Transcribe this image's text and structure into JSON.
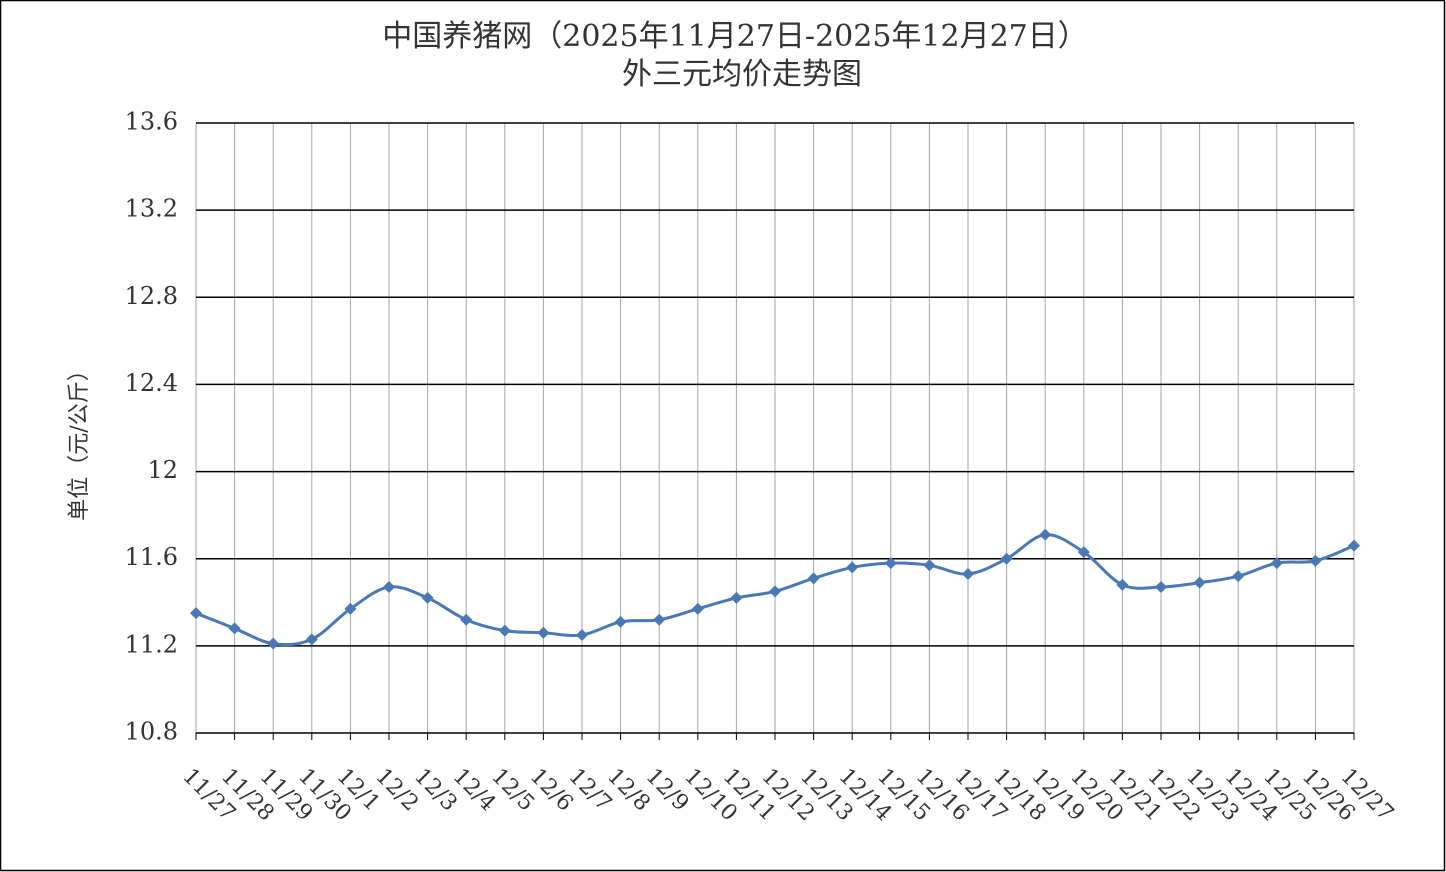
{
  "chart_data": {
    "type": "line",
    "title": "中国养猪网（2025年11月27日-2025年12月27日）",
    "subtitle": "外三元均价走势图",
    "y_label": "单位（元/公斤）",
    "categories": [
      "11/27",
      "11/28",
      "11/29",
      "11/30",
      "12/1",
      "12/2",
      "12/3",
      "12/4",
      "12/5",
      "12/6",
      "12/7",
      "12/8",
      "12/9",
      "12/10",
      "12/11",
      "12/12",
      "12/13",
      "12/14",
      "12/15",
      "12/16",
      "12/17",
      "12/18",
      "12/19",
      "12/20",
      "12/21",
      "12/22",
      "12/23",
      "12/24",
      "12/25",
      "12/26",
      "12/27"
    ],
    "values": [
      11.35,
      11.28,
      11.21,
      11.23,
      11.37,
      11.47,
      11.42,
      11.32,
      11.27,
      11.26,
      11.25,
      11.31,
      11.32,
      11.37,
      11.42,
      11.45,
      11.51,
      11.56,
      11.58,
      11.57,
      11.53,
      11.6,
      11.71,
      11.63,
      11.48,
      11.47,
      11.49,
      11.52,
      11.58,
      11.59,
      11.66
    ],
    "color": "#4a78b5",
    "ylim": [
      10.8,
      13.6
    ],
    "yticks": [
      10.8,
      11.2,
      11.6,
      12,
      12.4,
      12.8,
      13.2,
      13.6
    ],
    "grid": true
  }
}
